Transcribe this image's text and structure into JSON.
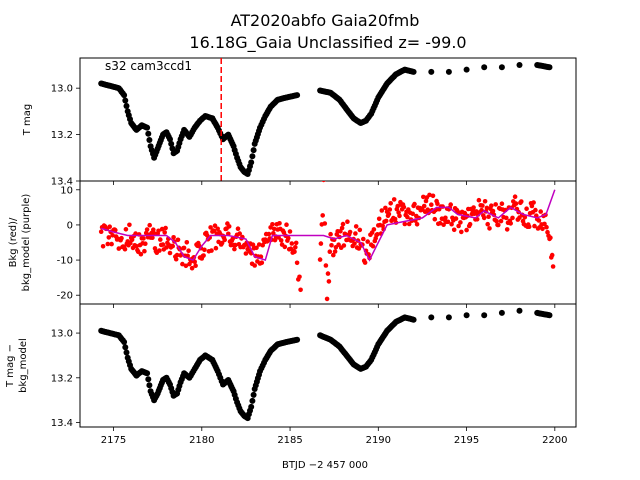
{
  "chart_data": {
    "type": "scatter",
    "title": "AT2020abfo  Gaia20fmb",
    "subtitle": "16.18G_Gaia Unclassified z= -99.0",
    "xlabel": "BTJD −2 457 000",
    "xlim": [
      2173.1,
      2201.2
    ],
    "xticks": [
      2175,
      2180,
      2185,
      2190,
      2195,
      2200
    ],
    "panels": [
      {
        "ylabel": "T mag",
        "ylim": [
          13.4,
          12.87
        ],
        "yticks": [
          13.0,
          13.2,
          13.4
        ],
        "inverted": true,
        "annotation": "s32 cam3ccd1",
        "marker_time": 2181.1,
        "marker_color": "#ff0000",
        "series": [
          {
            "color": "#000000",
            "values": [
              [
                2174.3,
                12.98
              ],
              [
                2174.8,
                12.99
              ],
              [
                2175.3,
                13.0
              ],
              [
                2175.6,
                13.03
              ],
              [
                2175.8,
                13.1
              ],
              [
                2176.0,
                13.15
              ],
              [
                2176.3,
                13.18
              ],
              [
                2176.6,
                13.16
              ],
              [
                2176.9,
                13.17
              ],
              [
                2177.1,
                13.25
              ],
              [
                2177.3,
                13.3
              ],
              [
                2177.5,
                13.26
              ],
              [
                2177.8,
                13.2
              ],
              [
                2178.0,
                13.19
              ],
              [
                2178.2,
                13.22
              ],
              [
                2178.4,
                13.28
              ],
              [
                2178.6,
                13.27
              ],
              [
                2178.8,
                13.22
              ],
              [
                2179.0,
                13.18
              ],
              [
                2179.3,
                13.21
              ],
              [
                2179.6,
                13.17
              ],
              [
                2179.9,
                13.14
              ],
              [
                2180.2,
                13.12
              ],
              [
                2180.6,
                13.13
              ],
              [
                2180.9,
                13.17
              ],
              [
                2181.2,
                13.22
              ],
              [
                2181.5,
                13.2
              ],
              [
                2181.8,
                13.25
              ],
              [
                2182.0,
                13.3
              ],
              [
                2182.2,
                13.34
              ],
              [
                2182.4,
                13.36
              ],
              [
                2182.6,
                13.37
              ],
              [
                2182.8,
                13.32
              ],
              [
                2183.0,
                13.24
              ],
              [
                2183.3,
                13.17
              ],
              [
                2183.6,
                13.12
              ],
              [
                2183.9,
                13.08
              ],
              [
                2184.3,
                13.05
              ],
              [
                2184.8,
                13.04
              ],
              [
                2185.4,
                13.03
              ],
              [
                2186.7,
                13.01
              ],
              [
                2187.3,
                13.02
              ],
              [
                2187.8,
                13.05
              ],
              [
                2188.2,
                13.09
              ],
              [
                2188.6,
                13.13
              ],
              [
                2189.0,
                13.15
              ],
              [
                2189.3,
                13.14
              ],
              [
                2189.6,
                13.11
              ],
              [
                2190.0,
                13.04
              ],
              [
                2190.5,
                12.98
              ],
              [
                2191.0,
                12.94
              ],
              [
                2191.5,
                12.92
              ],
              [
                2192.0,
                12.93
              ],
              [
                2193.0,
                12.93
              ],
              [
                2194.0,
                12.93
              ],
              [
                2195.0,
                12.92
              ],
              [
                2196.0,
                12.91
              ],
              [
                2197.0,
                12.91
              ],
              [
                2198.0,
                12.9
              ],
              [
                2199.0,
                12.9
              ],
              [
                2199.7,
                12.91
              ]
            ]
          }
        ]
      },
      {
        "ylabel": "Bkg (red)/ bkg_model (purple)",
        "ylim": [
          -22.5,
          12.5
        ],
        "yticks": [
          -20,
          -10,
          0,
          10
        ],
        "series": [
          {
            "color": "#ff0000",
            "values": [
              [
                2174.3,
                -3
              ],
              [
                2175.0,
                -2
              ],
              [
                2175.5,
                -5
              ],
              [
                2176.0,
                -3
              ],
              [
                2176.5,
                -6
              ],
              [
                2177.0,
                -3
              ],
              [
                2177.5,
                -5
              ],
              [
                2178.0,
                -4
              ],
              [
                2178.5,
                -7
              ],
              [
                2179.0,
                -8
              ],
              [
                2179.5,
                -9
              ],
              [
                2180.0,
                -7
              ],
              [
                2180.5,
                -4
              ],
              [
                2181.0,
                -3
              ],
              [
                2181.5,
                -2
              ],
              [
                2182.0,
                -4
              ],
              [
                2182.5,
                -7
              ],
              [
                2183.0,
                -9
              ],
              [
                2183.5,
                -7
              ],
              [
                2184.0,
                -3
              ],
              [
                2184.5,
                -2
              ],
              [
                2185.0,
                -4
              ],
              [
                2185.4,
                -8
              ],
              [
                2185.6,
                -20
              ],
              [
                2186.7,
                -12
              ],
              [
                2186.9,
                11
              ],
              [
                2187.1,
                -21
              ],
              [
                2187.3,
                -6
              ],
              [
                2187.8,
                -4
              ],
              [
                2188.3,
                -2
              ],
              [
                2188.8,
                -3
              ],
              [
                2189.3,
                -8
              ],
              [
                2189.8,
                -3
              ],
              [
                2190.3,
                2
              ],
              [
                2190.8,
                4
              ],
              [
                2191.3,
                3
              ],
              [
                2191.8,
                2
              ],
              [
                2192.3,
                4
              ],
              [
                2192.8,
                6
              ],
              [
                2193.3,
                4
              ],
              [
                2193.8,
                3
              ],
              [
                2194.3,
                2
              ],
              [
                2194.8,
                1
              ],
              [
                2195.3,
                3
              ],
              [
                2195.8,
                5
              ],
              [
                2196.3,
                2
              ],
              [
                2196.8,
                3
              ],
              [
                2197.3,
                2
              ],
              [
                2197.8,
                5
              ],
              [
                2198.3,
                2
              ],
              [
                2198.8,
                3
              ],
              [
                2199.3,
                1
              ],
              [
                2199.7,
                -2
              ],
              [
                2199.9,
                -12
              ],
              [
                2200.0,
                -20
              ]
            ]
          },
          {
            "color": "#c000c0",
            "values": [
              [
                2174.3,
                -1
              ],
              [
                2175.0,
                -2
              ],
              [
                2175.8,
                -3
              ],
              [
                2176.3,
                -3
              ],
              [
                2177.0,
                -3
              ],
              [
                2178.0,
                -3
              ],
              [
                2178.5,
                -5
              ],
              [
                2179.0,
                -9
              ],
              [
                2179.5,
                -10
              ],
              [
                2180.0,
                -6
              ],
              [
                2180.5,
                -3
              ],
              [
                2181.5,
                -3
              ],
              [
                2182.5,
                -4
              ],
              [
                2183.0,
                -9
              ],
              [
                2183.6,
                -10
              ],
              [
                2184.0,
                -3
              ],
              [
                2185.0,
                -3
              ],
              [
                2186.0,
                -3
              ],
              [
                2186.9,
                -3
              ],
              [
                2187.5,
                -4
              ],
              [
                2188.2,
                -3
              ],
              [
                2189.0,
                -5
              ],
              [
                2189.5,
                -10
              ],
              [
                2189.9,
                -6
              ],
              [
                2190.5,
                0
              ],
              [
                2191.5,
                1
              ],
              [
                2192.5,
                2
              ],
              [
                2193.3,
                5
              ],
              [
                2194.0,
                5
              ],
              [
                2194.5,
                3
              ],
              [
                2195.5,
                2
              ],
              [
                2196.0,
                4
              ],
              [
                2196.8,
                2
              ],
              [
                2197.5,
                5
              ],
              [
                2198.2,
                3
              ],
              [
                2199.0,
                2
              ],
              [
                2199.5,
                3
              ],
              [
                2200.0,
                10
              ]
            ]
          }
        ]
      },
      {
        "ylabel": "T mag − bkg_model",
        "ylim": [
          13.42,
          12.87
        ],
        "yticks": [
          13.0,
          13.2,
          13.4
        ],
        "inverted": true,
        "series": [
          {
            "color": "#000000",
            "values": [
              [
                2174.3,
                12.99
              ],
              [
                2174.8,
                13.0
              ],
              [
                2175.3,
                13.01
              ],
              [
                2175.6,
                13.04
              ],
              [
                2175.8,
                13.11
              ],
              [
                2176.0,
                13.16
              ],
              [
                2176.3,
                13.19
              ],
              [
                2176.6,
                13.17
              ],
              [
                2176.9,
                13.18
              ],
              [
                2177.1,
                13.26
              ],
              [
                2177.3,
                13.3
              ],
              [
                2177.5,
                13.27
              ],
              [
                2177.8,
                13.21
              ],
              [
                2178.0,
                13.2
              ],
              [
                2178.2,
                13.23
              ],
              [
                2178.4,
                13.28
              ],
              [
                2178.6,
                13.27
              ],
              [
                2178.8,
                13.22
              ],
              [
                2179.0,
                13.18
              ],
              [
                2179.3,
                13.2
              ],
              [
                2179.6,
                13.16
              ],
              [
                2179.9,
                13.12
              ],
              [
                2180.2,
                13.1
              ],
              [
                2180.6,
                13.12
              ],
              [
                2180.9,
                13.17
              ],
              [
                2181.2,
                13.23
              ],
              [
                2181.5,
                13.21
              ],
              [
                2181.8,
                13.26
              ],
              [
                2182.0,
                13.31
              ],
              [
                2182.2,
                13.35
              ],
              [
                2182.4,
                13.37
              ],
              [
                2182.6,
                13.38
              ],
              [
                2182.8,
                13.33
              ],
              [
                2183.0,
                13.25
              ],
              [
                2183.3,
                13.17
              ],
              [
                2183.6,
                13.12
              ],
              [
                2183.9,
                13.08
              ],
              [
                2184.3,
                13.05
              ],
              [
                2184.8,
                13.04
              ],
              [
                2185.4,
                13.03
              ],
              [
                2186.7,
                13.01
              ],
              [
                2187.3,
                13.03
              ],
              [
                2187.8,
                13.06
              ],
              [
                2188.2,
                13.1
              ],
              [
                2188.6,
                13.14
              ],
              [
                2189.0,
                13.16
              ],
              [
                2189.3,
                13.15
              ],
              [
                2189.6,
                13.12
              ],
              [
                2190.0,
                13.05
              ],
              [
                2190.5,
                12.99
              ],
              [
                2191.0,
                12.95
              ],
              [
                2191.5,
                12.93
              ],
              [
                2192.0,
                12.94
              ],
              [
                2193.0,
                12.93
              ],
              [
                2194.0,
                12.93
              ],
              [
                2195.0,
                12.92
              ],
              [
                2196.0,
                12.92
              ],
              [
                2197.0,
                12.91
              ],
              [
                2198.0,
                12.9
              ],
              [
                2199.0,
                12.91
              ],
              [
                2199.7,
                12.92
              ]
            ]
          }
        ]
      }
    ]
  }
}
